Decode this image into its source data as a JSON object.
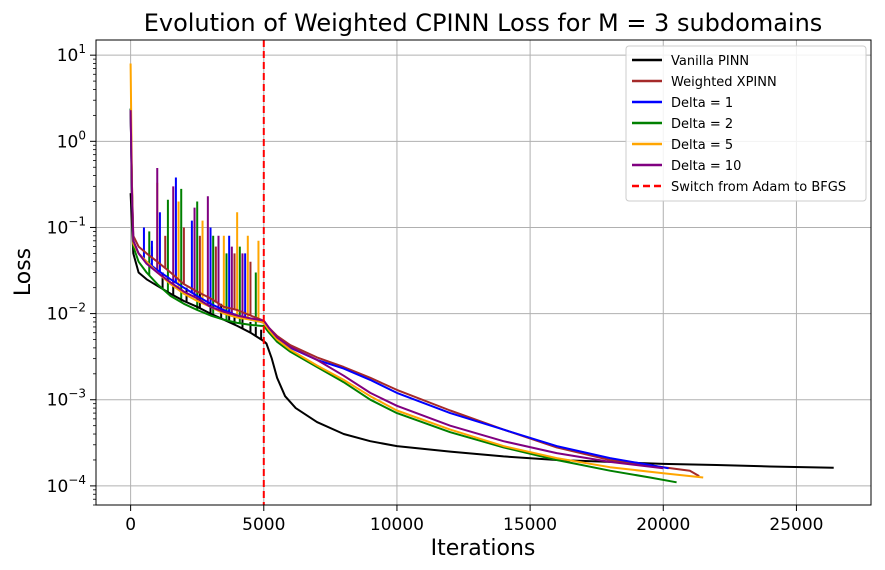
{
  "chart_data": {
    "type": "line",
    "title": "Evolution of Weighted CPINN Loss for M = 3 subdomains",
    "xlabel": "Iterations",
    "ylabel": "Loss",
    "xlim": [
      -1300,
      27800
    ],
    "ylim": [
      6e-05,
      15
    ],
    "yscale": "log",
    "grid": true,
    "legend_position": "top-right",
    "x_ticks": [
      0,
      5000,
      10000,
      15000,
      20000,
      25000
    ],
    "x_tick_labels": [
      "0",
      "5000",
      "10000",
      "15000",
      "20000",
      "25000"
    ],
    "y_ticks": [
      {
        "value": 10,
        "base": "10",
        "exp": "1"
      },
      {
        "value": 1,
        "base": "10",
        "exp": "0"
      },
      {
        "value": 0.1,
        "base": "10",
        "exp": "−1"
      },
      {
        "value": 0.01,
        "base": "10",
        "exp": "−2"
      },
      {
        "value": 0.001,
        "base": "10",
        "exp": "−3"
      },
      {
        "value": 0.0001,
        "base": "10",
        "exp": "−4"
      }
    ],
    "vline": {
      "x": 5000,
      "label": "Switch from Adam to BFGS",
      "color": "#ff0000"
    },
    "series": [
      {
        "name": "Vanilla PINN",
        "color": "#000000",
        "x": [
          0,
          100,
          300,
          600,
          1000,
          1500,
          2000,
          2500,
          3000,
          3500,
          4000,
          4500,
          5000,
          5100,
          5300,
          5500,
          5800,
          6200,
          7000,
          8000,
          9000,
          10000,
          12000,
          14000,
          16000,
          18000,
          20000,
          22000,
          24000,
          26400
        ],
        "y": [
          0.25,
          0.05,
          0.03,
          0.025,
          0.021,
          0.017,
          0.014,
          0.012,
          0.01,
          0.0085,
          0.0072,
          0.006,
          0.0048,
          0.0045,
          0.003,
          0.0018,
          0.0011,
          0.0008,
          0.00055,
          0.0004,
          0.00033,
          0.00029,
          0.00025,
          0.00022,
          0.0002,
          0.00019,
          0.00018,
          0.000175,
          0.000168,
          0.000162
        ]
      },
      {
        "name": "Weighted XPINN",
        "color": "#a52a2a",
        "x": [
          0,
          50,
          100,
          300,
          600,
          1000,
          1500,
          2000,
          2500,
          3000,
          3500,
          4000,
          4500,
          4900,
          5000,
          5200,
          5500,
          6000,
          7000,
          8000,
          9000,
          10000,
          12000,
          14000,
          16000,
          18000,
          20000,
          21000,
          21350
        ],
        "y": [
          2.3,
          0.3,
          0.08,
          0.06,
          0.05,
          0.04,
          0.03,
          0.022,
          0.018,
          0.015,
          0.012,
          0.011,
          0.0095,
          0.0085,
          0.0082,
          0.0068,
          0.0055,
          0.0043,
          0.0031,
          0.0024,
          0.0018,
          0.0013,
          0.00075,
          0.00045,
          0.00028,
          0.0002,
          0.000165,
          0.00015,
          0.00013
        ]
      },
      {
        "name": "Delta = 1",
        "color": "#0000ff",
        "x": [
          0,
          50,
          100,
          300,
          600,
          1000,
          1500,
          2000,
          2500,
          3000,
          3500,
          4000,
          4500,
          4900,
          5000,
          5200,
          5500,
          6000,
          7000,
          8000,
          9000,
          10000,
          12000,
          14000,
          16000,
          18000,
          19500,
          20200
        ],
        "y": [
          2.4,
          0.25,
          0.07,
          0.05,
          0.04,
          0.032,
          0.025,
          0.02,
          0.016,
          0.013,
          0.011,
          0.0095,
          0.0085,
          0.008,
          0.0078,
          0.0065,
          0.0052,
          0.004,
          0.0029,
          0.0023,
          0.0017,
          0.0012,
          0.0007,
          0.00045,
          0.00029,
          0.00021,
          0.000175,
          0.00016
        ]
      },
      {
        "name": "Delta = 2",
        "color": "#008000",
        "x": [
          0,
          50,
          100,
          300,
          600,
          1000,
          1500,
          2000,
          2500,
          3000,
          3500,
          4000,
          4500,
          4900,
          5000,
          5200,
          5500,
          6000,
          7000,
          8000,
          9000,
          10000,
          12000,
          14000,
          16000,
          18000,
          19500,
          20500
        ],
        "y": [
          2.4,
          0.25,
          0.06,
          0.04,
          0.03,
          0.022,
          0.016,
          0.013,
          0.011,
          0.0095,
          0.0085,
          0.0078,
          0.0074,
          0.0072,
          0.0072,
          0.006,
          0.0047,
          0.0036,
          0.0024,
          0.0016,
          0.001,
          0.0007,
          0.00042,
          0.00028,
          0.0002,
          0.00015,
          0.000125,
          0.00011
        ]
      },
      {
        "name": "Delta = 5",
        "color": "#ffa500",
        "x": [
          0,
          50,
          100,
          300,
          600,
          1000,
          1500,
          2000,
          2500,
          3000,
          3500,
          4000,
          4500,
          4900,
          5000,
          5200,
          5500,
          6000,
          7000,
          8000,
          9000,
          10000,
          12000,
          14000,
          16000,
          18000,
          20000,
          21500
        ],
        "y": [
          8.0,
          0.3,
          0.065,
          0.05,
          0.04,
          0.03,
          0.022,
          0.017,
          0.014,
          0.012,
          0.01,
          0.009,
          0.0085,
          0.008,
          0.0078,
          0.0064,
          0.005,
          0.0038,
          0.0025,
          0.0017,
          0.0011,
          0.00075,
          0.00045,
          0.00029,
          0.00021,
          0.000165,
          0.00014,
          0.000125
        ]
      },
      {
        "name": "Delta = 10",
        "color": "#800080",
        "x": [
          0,
          50,
          100,
          300,
          600,
          1000,
          1500,
          2000,
          2500,
          3000,
          3500,
          4000,
          4500,
          4900,
          5000,
          5200,
          5500,
          6000,
          7000,
          8000,
          9000,
          10000,
          12000,
          14000,
          16000,
          18000,
          20000
        ],
        "y": [
          2.3,
          0.25,
          0.07,
          0.05,
          0.038,
          0.03,
          0.023,
          0.018,
          0.015,
          0.012,
          0.0105,
          0.0095,
          0.0088,
          0.0084,
          0.0083,
          0.0068,
          0.0053,
          0.0041,
          0.0029,
          0.0019,
          0.0012,
          0.00085,
          0.0005,
          0.00033,
          0.00024,
          0.00019,
          0.00016
        ]
      }
    ],
    "spikes": [
      {
        "series": "Vanilla PINN",
        "x": [
          1200,
          1600,
          2100,
          2600,
          3000,
          3400,
          3700,
          3900,
          4200,
          4500,
          4700,
          4900
        ],
        "y": [
          0.03,
          0.025,
          0.02,
          0.018,
          0.014,
          0.013,
          0.011,
          0.01,
          0.009,
          0.008,
          0.007,
          0.0065
        ]
      },
      {
        "series": "Weighted XPINN",
        "x": [
          800,
          1300,
          2000,
          2600,
          3200,
          3900,
          4500
        ],
        "y": [
          0.06,
          0.08,
          0.1,
          0.08,
          0.06,
          0.05,
          0.04
        ]
      },
      {
        "series": "Delta = 1",
        "x": [
          500,
          800,
          1100,
          1700,
          2300,
          3000,
          3700,
          4300
        ],
        "y": [
          0.1,
          0.07,
          0.15,
          0.38,
          0.12,
          0.1,
          0.08,
          0.05
        ]
      },
      {
        "series": "Delta = 2",
        "x": [
          700,
          1400,
          1900,
          2500,
          3100,
          3600,
          4100,
          4700
        ],
        "y": [
          0.09,
          0.21,
          0.28,
          0.2,
          0.08,
          0.05,
          0.06,
          0.03
        ]
      },
      {
        "series": "Delta = 5",
        "x": [
          1000,
          1800,
          2700,
          3500,
          4000,
          4400,
          4800
        ],
        "y": [
          0.33,
          0.2,
          0.12,
          0.08,
          0.15,
          0.08,
          0.07
        ]
      },
      {
        "series": "Delta = 10",
        "x": [
          1000,
          1600,
          2400,
          2900,
          3300,
          3800,
          4200
        ],
        "y": [
          0.49,
          0.3,
          0.17,
          0.23,
          0.08,
          0.06,
          0.05
        ]
      }
    ]
  }
}
